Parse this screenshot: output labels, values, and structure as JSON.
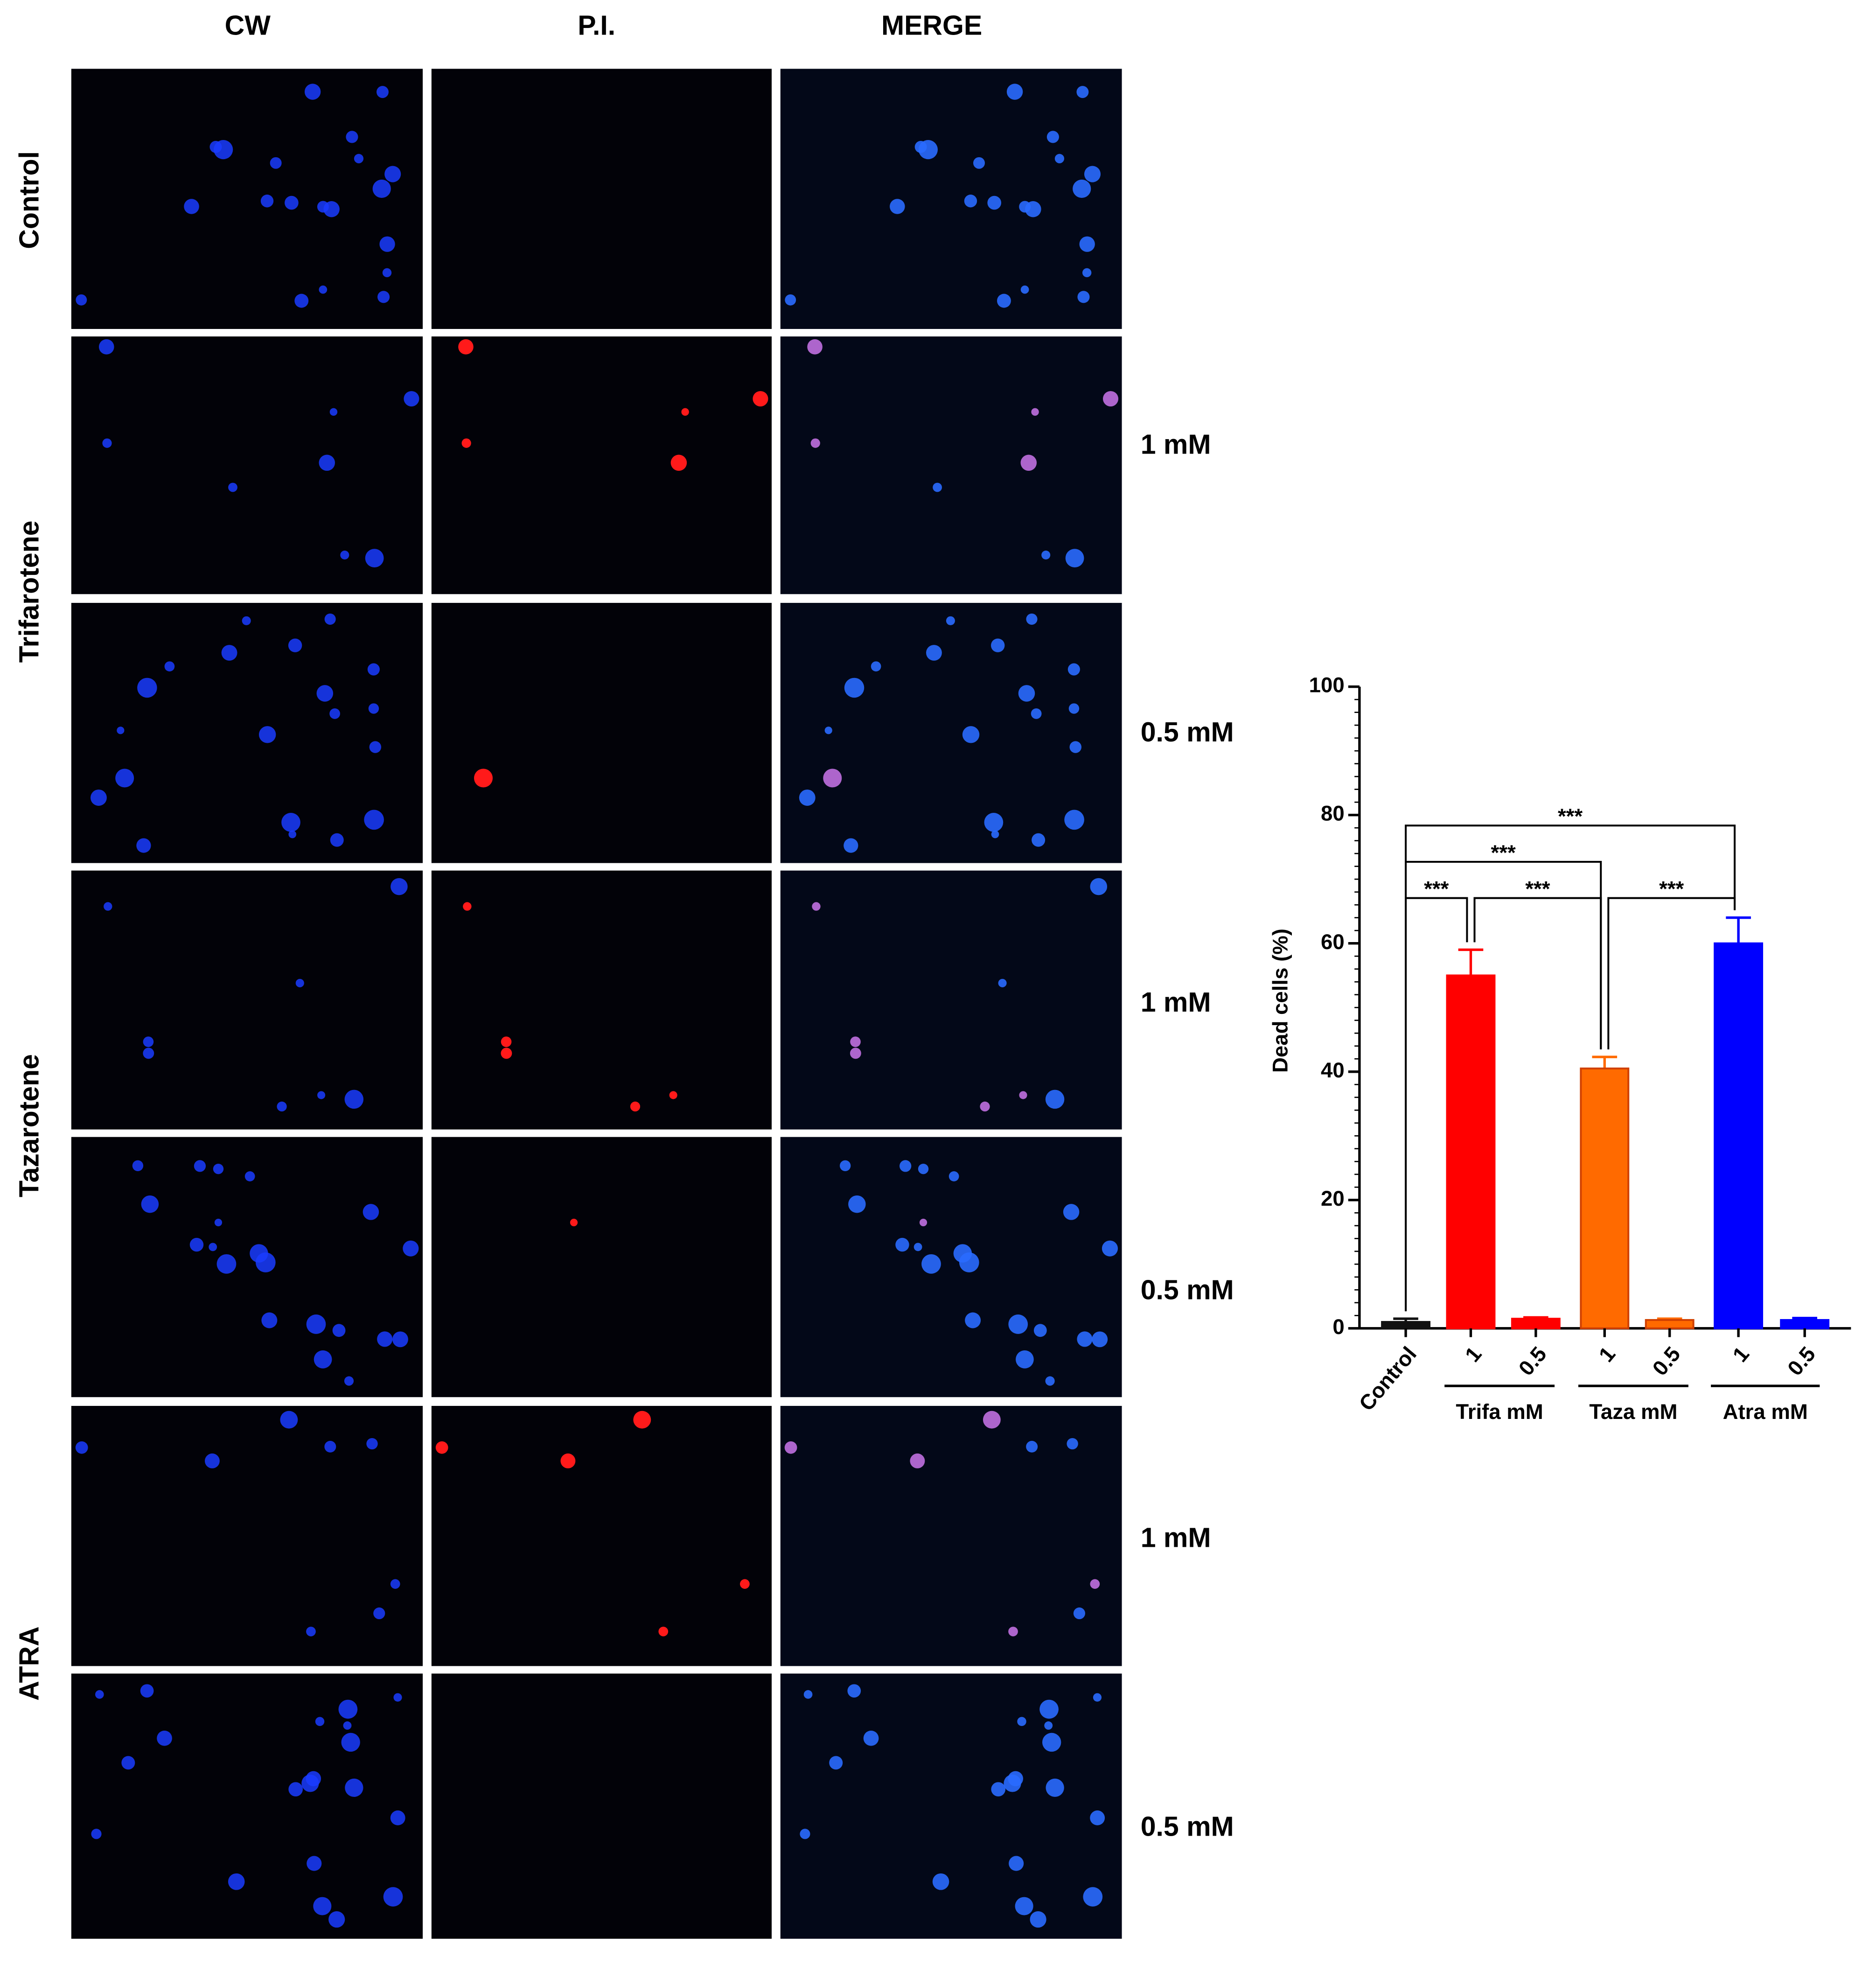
{
  "figure": {
    "columns": [
      "CW",
      "P.I.",
      "MERGE"
    ],
    "row_labels": [
      "Control",
      "Trifarotene",
      "Tazarotene",
      "ATRA"
    ],
    "concentrations": [
      "1 mM",
      "0.5 mM",
      "1 mM",
      "0.5 mM",
      "1 mM",
      "0.5 mM"
    ]
  },
  "chart_data": {
    "type": "bar",
    "ylabel": "Dead cells (%)",
    "categories": [
      "Control",
      "1",
      "0.5",
      "1",
      "0.5",
      "1",
      "0.5"
    ],
    "groups": [
      "Trifa mM",
      "Taza mM",
      "Atra mM"
    ],
    "values": [
      1,
      55,
      1.5,
      40.5,
      1.3,
      60,
      1.3
    ],
    "errors": [
      0.5,
      4,
      0.2,
      1.8,
      0.2,
      4,
      0.3
    ],
    "colors": [
      "#111111",
      "#ff0000",
      "#ff0000",
      "#ff6a00",
      "#ff6a00",
      "#0000ff",
      "#0000ff"
    ],
    "ylim": [
      0,
      100
    ],
    "yticks": [
      0,
      20,
      40,
      60,
      80,
      100
    ],
    "annotations": [
      "***",
      "***",
      "***",
      "***",
      "***"
    ]
  }
}
